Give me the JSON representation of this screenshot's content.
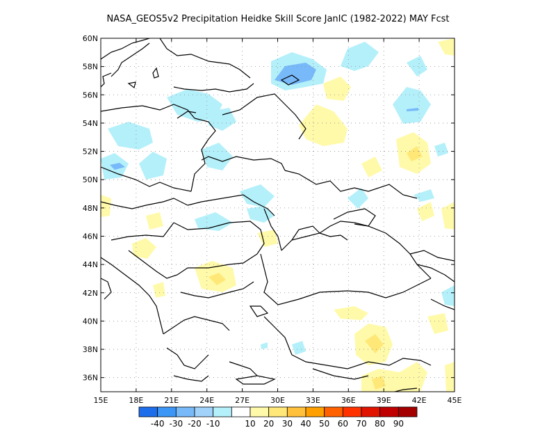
{
  "title": "NASA_GEOS5v2  Precipitation Heidke Skill Score JanIC (1982-2022) MAY Fcst",
  "map": {
    "lon_range": [
      15,
      45
    ],
    "lat_range": [
      35,
      60
    ],
    "lon_ticks": [
      "15E",
      "18E",
      "21E",
      "24E",
      "27E",
      "30E",
      "33E",
      "36E",
      "39E",
      "42E",
      "45E"
    ],
    "lat_ticks": [
      "36N",
      "38N",
      "40N",
      "42N",
      "44N",
      "46N",
      "48N",
      "50N",
      "52N",
      "54N",
      "56N",
      "58N",
      "60N"
    ],
    "grid": "dotted"
  },
  "colorbar": {
    "colors": [
      "#1e6eeb",
      "#3c96f5",
      "#78b9fa",
      "#a0d2fa",
      "#b4f0fa",
      "#ffffff",
      "#fffaaa",
      "#ffe878",
      "#ffc03c",
      "#ffa000",
      "#ff6000",
      "#ff3200",
      "#e11400",
      "#c00000",
      "#a50000"
    ],
    "labels": [
      "-40",
      "-30",
      "-20",
      "-10",
      "10",
      "20",
      "30",
      "40",
      "50",
      "60",
      "70",
      "80",
      "90"
    ]
  }
}
